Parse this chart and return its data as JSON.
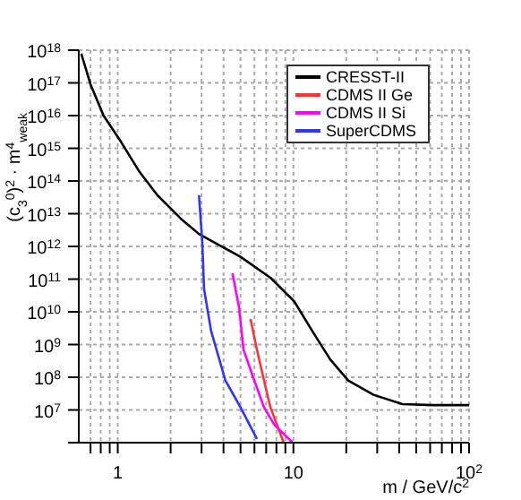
{
  "chart_data": {
    "type": "line",
    "xlabel": "m / GeV/c$^{2}$",
    "ylabel": "(c$_{3}$$^{0}$)$^{2}$ · m$^{4}$$_{weak}$",
    "log": "xy",
    "grid": true,
    "legend": "top right",
    "marker": "none",
    "line_style": "solid",
    "xlim": [
      0.6,
      100
    ],
    "xticks": [
      {
        "value": 0.7,
        "label": null
      },
      {
        "value": 0.8,
        "label": null
      },
      {
        "value": 0.9,
        "label": null
      },
      1,
      {
        "value": 2,
        "label": null
      },
      {
        "value": 3,
        "label": null
      },
      {
        "value": 4,
        "label": null
      },
      {
        "value": 5,
        "label": null
      },
      {
        "value": 6,
        "label": null
      },
      {
        "value": 7,
        "label": null
      },
      {
        "value": 8,
        "label": null
      },
      {
        "value": 9,
        "label": null
      },
      10,
      {
        "value": 20,
        "label": null
      },
      {
        "value": 30,
        "label": null
      },
      {
        "value": 40,
        "label": null
      },
      {
        "value": 50,
        "label": null
      },
      {
        "value": 60,
        "label": null
      },
      {
        "value": 70,
        "label": null
      },
      {
        "value": 80,
        "label": null
      },
      {
        "value": 90,
        "label": null
      },
      {
        "value": 100,
        "label": "10$^{2}$"
      }
    ],
    "ylim": [
      1000000.0,
      1e+18
    ],
    "yticks": [
      {
        "value": 1000000.0,
        "label": null
      },
      {
        "value": 10000000.0,
        "label": "10$^{7}$"
      },
      {
        "value": 100000000.0,
        "label": "10$^{8}$"
      },
      {
        "value": 1000000000.0,
        "label": "10$^{9}$"
      },
      {
        "value": 10000000000.0,
        "label": "10$^{10}$"
      },
      {
        "value": 100000000000.0,
        "label": "10$^{11}$"
      },
      {
        "value": 1000000000000.0,
        "label": "10$^{12}$"
      },
      {
        "value": 10000000000000.0,
        "label": "10$^{13}$"
      },
      {
        "value": 100000000000000.0,
        "label": "10$^{14}$"
      },
      {
        "value": 1000000000000000.0,
        "label": "10$^{15}$"
      },
      {
        "value": 1e+16,
        "label": "10$^{16}$"
      },
      {
        "value": 1e+17,
        "label": "10$^{17}$"
      },
      {
        "value": 1e+18,
        "label": "10$^{18}$"
      }
    ],
    "series": [
      {
        "name": "CRESST-II",
        "color": "#000000",
        "x": [
          0.62,
          0.7,
          0.83,
          1.05,
          1.33,
          1.68,
          2.29,
          2.9,
          5.0,
          7.4,
          10.1,
          12.8,
          16.2,
          20.5,
          28.6,
          41.7,
          62,
          100
        ],
        "values": [
          7.8e+17,
          9e+16,
          1e+16,
          1500000000000000.0,
          190000000000000.0,
          37000000000000.0,
          7000000000000.0,
          2400000000000.0,
          480000000000.0,
          110000000000.0,
          21000000000.0,
          2600000000.0,
          350000000.0,
          80000000.0,
          29000000.0,
          15000000.0,
          14000000.0,
          14000000.0
        ]
      },
      {
        "name": "CDMS II Ge",
        "color": "#ff3333",
        "x": [
          5.7,
          6.2,
          6.8,
          7.4,
          8.8
        ],
        "values": [
          6000000000.0,
          700000000.0,
          80000000.0,
          12000000.0,
          1000000.0
        ]
      },
      {
        "name": "CDMS II Si",
        "color": "#ff00ff",
        "x": [
          4.5,
          4.9,
          5.2,
          5.9,
          6.8,
          7.8,
          9.9
        ],
        "values": [
          150000000000.0,
          14000000000.0,
          700000000.0,
          100000000.0,
          12000000.0,
          3500000.0,
          1000000.0
        ]
      },
      {
        "name": "SuperCDMS",
        "color": "#3333ff",
        "x": [
          2.9,
          3.03,
          3.1,
          3.4,
          4.1,
          5.0,
          6.2
        ],
        "values": [
          37000000000000.0,
          1300000000000.0,
          50000000000.0,
          2600000000.0,
          80000000.0,
          12000000.0,
          1300000.0
        ]
      }
    ]
  }
}
